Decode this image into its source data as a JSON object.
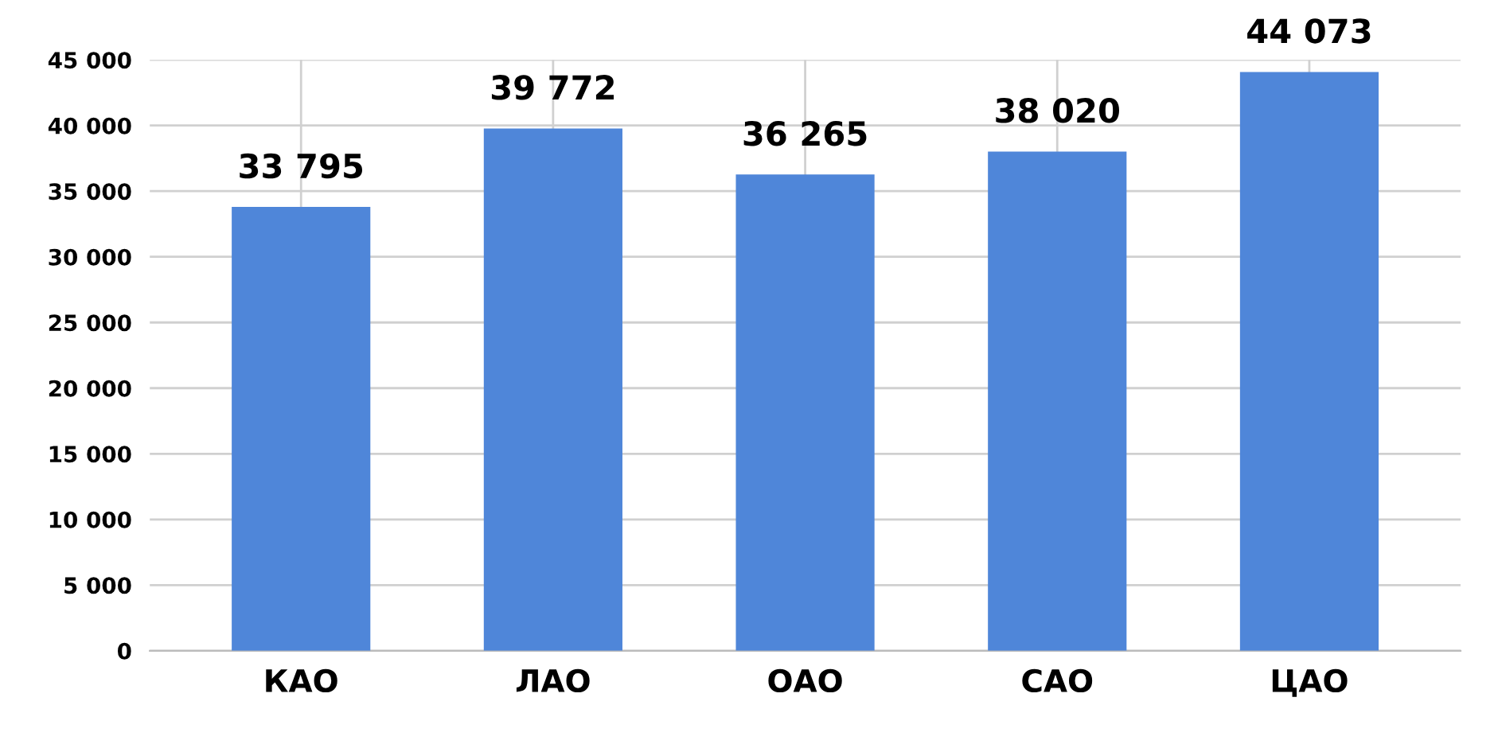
{
  "chart_data": {
    "type": "bar",
    "categories": [
      "КАО",
      "ЛАО",
      "ОАО",
      "САО",
      "ЦАО"
    ],
    "values": [
      33795,
      39772,
      36265,
      38020,
      44073
    ],
    "value_labels": [
      "33 795",
      "39 772",
      "36 265",
      "38 020",
      "44 073"
    ],
    "color": "#4f86d9",
    "ylim": [
      0,
      45000
    ],
    "yticks": [
      {
        "value": 0,
        "label": "0"
      },
      {
        "value": 5000,
        "label": "5 000"
      },
      {
        "value": 10000,
        "label": "10 000"
      },
      {
        "value": 15000,
        "label": "15 000"
      },
      {
        "value": 20000,
        "label": "20 000"
      },
      {
        "value": 25000,
        "label": "25 000"
      },
      {
        "value": 30000,
        "label": "30 000"
      },
      {
        "value": 35000,
        "label": "35 000"
      },
      {
        "value": 40000,
        "label": "40 000"
      },
      {
        "value": 45000,
        "label": "45 000"
      }
    ],
    "grid": true
  }
}
